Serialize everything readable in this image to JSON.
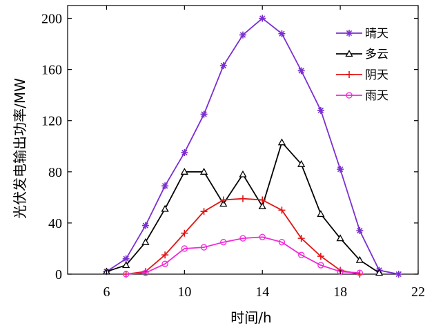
{
  "chart_data": {
    "type": "line",
    "title": "",
    "xlabel": "时间/h",
    "ylabel": "光伏发电输出功率/MW",
    "xlim": [
      4,
      22
    ],
    "ylim": [
      0,
      210
    ],
    "xticks": [
      6,
      10,
      14,
      18,
      22
    ],
    "yticks": [
      0,
      40,
      80,
      120,
      160,
      200
    ],
    "grid": false,
    "legend_position": "top-right",
    "series": [
      {
        "name": "晴天",
        "color": "#7b2fd0",
        "marker": "star",
        "x": [
          6,
          7,
          8,
          9,
          10,
          11,
          12,
          13,
          14,
          15,
          16,
          17,
          18,
          19,
          20,
          21
        ],
        "y": [
          2,
          12,
          38,
          69,
          95,
          125,
          163,
          187,
          200,
          188,
          159,
          128,
          82,
          34,
          3,
          0
        ]
      },
      {
        "name": "多云",
        "color": "#000000",
        "marker": "triangle",
        "x": [
          6,
          7,
          8,
          9,
          10,
          11,
          12,
          13,
          14,
          15,
          16,
          17,
          18,
          19,
          20
        ],
        "y": [
          2,
          7,
          25,
          51,
          80,
          80,
          55,
          78,
          53,
          103,
          86,
          47,
          28,
          11,
          1
        ]
      },
      {
        "name": "阴天",
        "color": "#e01515",
        "marker": "plus",
        "x": [
          7,
          8,
          9,
          10,
          11,
          12,
          13,
          14,
          15,
          16,
          17,
          18,
          19
        ],
        "y": [
          0,
          2,
          15,
          32,
          49,
          58,
          59,
          58,
          50,
          28,
          14,
          3,
          0
        ]
      },
      {
        "name": "雨天",
        "color": "#f028d8",
        "marker": "circle",
        "x": [
          7,
          8,
          9,
          10,
          11,
          12,
          13,
          14,
          15,
          16,
          17,
          18,
          19
        ],
        "y": [
          0,
          1,
          8,
          20,
          21,
          25,
          28,
          29,
          25,
          15,
          7,
          2,
          1
        ]
      }
    ]
  }
}
